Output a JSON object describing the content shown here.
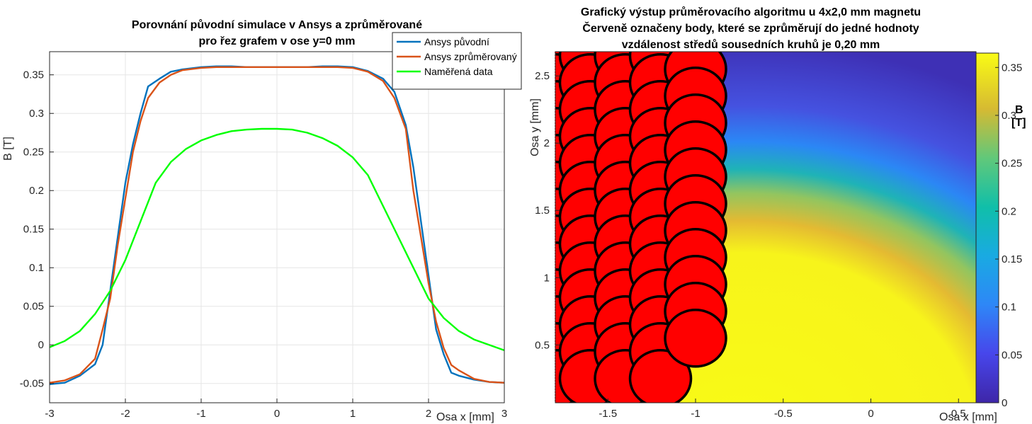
{
  "chart_data": [
    {
      "type": "line",
      "title": [
        "Porovnání původní simulace v Ansys a zprůměrované",
        "pro řez grafem v ose y=0 mm"
      ],
      "xlabel": "Osa x [mm]",
      "ylabel": "B [T]",
      "xlim": [
        -3,
        3
      ],
      "ylim": [
        -0.075,
        0.38
      ],
      "xticks": [
        -3,
        -2,
        -1,
        0,
        1,
        2,
        3
      ],
      "xtick_labels": [
        "-3",
        "-2",
        "-1",
        "0",
        "1",
        "2",
        "3"
      ],
      "yticks": [
        -0.05,
        0,
        0.05,
        0.1,
        0.15,
        0.2,
        0.25,
        0.3,
        0.35
      ],
      "ytick_labels": [
        "-0.05",
        "0",
        "0.05",
        "0.1",
        "0.15",
        "0.2",
        "0.25",
        "0.3",
        "0.35"
      ],
      "grid": true,
      "legend": "top-right",
      "series": [
        {
          "name": "Ansys původní",
          "color": "#0072bd",
          "x": [
            -3,
            -2.8,
            -2.6,
            -2.4,
            -2.3,
            -2.2,
            -2.1,
            -2.0,
            -1.9,
            -1.8,
            -1.7,
            -1.55,
            -1.4,
            -1.25,
            -1.0,
            -0.8,
            -0.6,
            -0.4,
            -0.2,
            0,
            0.2,
            0.4,
            0.6,
            0.8,
            1.0,
            1.2,
            1.4,
            1.55,
            1.7,
            1.8,
            1.9,
            2.0,
            2.1,
            2.2,
            2.3,
            2.4,
            2.6,
            2.8,
            3.0
          ],
          "y": [
            -0.051,
            -0.049,
            -0.04,
            -0.025,
            0.0,
            0.07,
            0.14,
            0.21,
            0.26,
            0.3,
            0.335,
            0.345,
            0.354,
            0.357,
            0.36,
            0.361,
            0.361,
            0.36,
            0.36,
            0.36,
            0.36,
            0.36,
            0.361,
            0.361,
            0.36,
            0.355,
            0.345,
            0.328,
            0.285,
            0.23,
            0.16,
            0.09,
            0.02,
            -0.012,
            -0.036,
            -0.04,
            -0.045,
            -0.048,
            -0.049
          ]
        },
        {
          "name": "Ansys zprůměrovaný",
          "color": "#d95319",
          "x": [
            -3,
            -2.8,
            -2.6,
            -2.4,
            -2.3,
            -2.2,
            -2.1,
            -2.0,
            -1.9,
            -1.8,
            -1.7,
            -1.55,
            -1.4,
            -1.25,
            -1.0,
            -0.8,
            -0.6,
            -0.4,
            -0.2,
            0,
            0.2,
            0.4,
            0.6,
            0.8,
            1.0,
            1.2,
            1.4,
            1.55,
            1.7,
            1.8,
            1.9,
            2.0,
            2.1,
            2.2,
            2.3,
            2.4,
            2.6,
            2.8,
            3.0
          ],
          "y": [
            -0.049,
            -0.046,
            -0.038,
            -0.018,
            0.02,
            0.06,
            0.13,
            0.19,
            0.25,
            0.29,
            0.32,
            0.34,
            0.35,
            0.356,
            0.359,
            0.36,
            0.36,
            0.36,
            0.36,
            0.36,
            0.36,
            0.36,
            0.36,
            0.36,
            0.359,
            0.354,
            0.342,
            0.32,
            0.28,
            0.2,
            0.14,
            0.08,
            0.03,
            -0.004,
            -0.026,
            -0.033,
            -0.044,
            -0.048,
            -0.049
          ]
        },
        {
          "name": "Naměřená data",
          "color": "#00ff00",
          "x": [
            -3,
            -2.8,
            -2.6,
            -2.4,
            -2.2,
            -2.0,
            -1.8,
            -1.6,
            -1.4,
            -1.2,
            -1.0,
            -0.8,
            -0.6,
            -0.4,
            -0.2,
            0,
            0.2,
            0.4,
            0.6,
            0.8,
            1.0,
            1.2,
            1.4,
            1.6,
            1.8,
            2.0,
            2.2,
            2.4,
            2.6,
            2.8,
            3.0
          ],
          "y": [
            -0.003,
            0.005,
            0.018,
            0.04,
            0.07,
            0.11,
            0.16,
            0.21,
            0.237,
            0.254,
            0.265,
            0.272,
            0.277,
            0.279,
            0.28,
            0.28,
            0.279,
            0.275,
            0.268,
            0.258,
            0.243,
            0.22,
            0.18,
            0.14,
            0.1,
            0.06,
            0.035,
            0.018,
            0.007,
            0.0,
            -0.007
          ]
        }
      ]
    },
    {
      "type": "heatmap",
      "title": [
        "Grafický výstup průměrovacího algoritmu u 4x2,0 mm magnetu",
        "Červeně označeny body, které se zprůměrují do jedné hodnoty",
        "vzdálenost středů sousedních kruhů je 0,20 mm"
      ],
      "xlabel": "Osa x [mm]",
      "ylabel": "Osa y [mm]",
      "xlim": [
        -1.8,
        0.6
      ],
      "ylim": [
        0.07,
        2.68
      ],
      "xticks": [
        -1.5,
        -1,
        -0.5,
        0,
        0.5
      ],
      "xtick_labels": [
        "-1.5",
        "-1",
        "-0.5",
        "0",
        "0.5"
      ],
      "yticks": [
        0.5,
        1,
        1.5,
        2,
        2.5
      ],
      "ytick_labels": [
        "0.5",
        "1",
        "1.5",
        "2",
        "2.5"
      ],
      "colorbar": {
        "label": "B\n[T]",
        "range": [
          0,
          0.365
        ],
        "ticks": [
          0,
          0.05,
          0.1,
          0.15,
          0.2,
          0.25,
          0.3,
          0.35
        ],
        "tick_labels": [
          "0",
          "0.05",
          "0.1",
          "0.15",
          "0.2",
          "0.25",
          "0.3",
          "0.35"
        ],
        "colormap": "parula"
      },
      "circle_color": "#ff0000",
      "circle_columns_x": [
        -1.8,
        -1.6,
        -1.4,
        -1.2,
        -1.0
      ],
      "circle_row_spacing": 0.2
    }
  ]
}
